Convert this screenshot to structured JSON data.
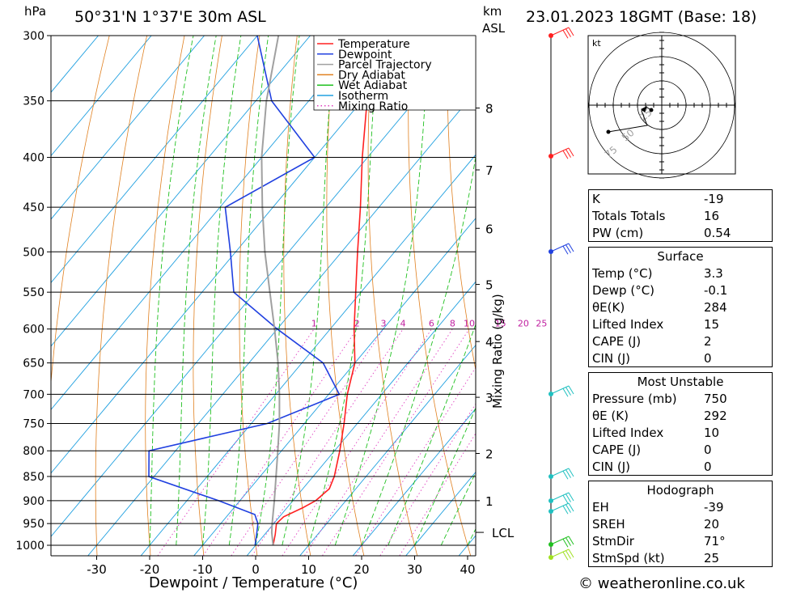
{
  "header": {
    "hpa_label": "hPa",
    "location": "50°31'N  1°37'E  30m  ASL",
    "km_label": "km",
    "asl_label": "ASL",
    "datetime": "23.01.2023  18GMT  (Base: 18)"
  },
  "chart_data": {
    "type": "line",
    "xlabel": "Dewpoint / Temperature (°C)",
    "mixing_ratio_label": "Mixing Ratio (g/kg)",
    "pressure_levels": [
      300,
      350,
      400,
      450,
      500,
      550,
      600,
      650,
      700,
      750,
      800,
      850,
      900,
      950,
      1000
    ],
    "x_ticks": [
      -30,
      -20,
      -10,
      0,
      10,
      20,
      30,
      40
    ],
    "xlim": [
      -39,
      41
    ],
    "ylim": [
      1040,
      300
    ],
    "km_ticks": [
      {
        "km": "1",
        "p": 900
      },
      {
        "km": "2",
        "p": 805
      },
      {
        "km": "3",
        "p": 705
      },
      {
        "km": "4",
        "p": 618
      },
      {
        "km": "5",
        "p": 540
      },
      {
        "km": "6",
        "p": 473
      },
      {
        "km": "7",
        "p": 412
      },
      {
        "km": "8",
        "p": 356
      }
    ],
    "lcl": {
      "label": "LCL",
      "p": 970
    },
    "mixing_ratio_values": [
      "1",
      "2",
      "3",
      "4",
      "6",
      "8",
      "10",
      "15",
      "20",
      "25"
    ],
    "legend": [
      {
        "name": "Temperature",
        "color": "#ff2020"
      },
      {
        "name": "Dewpoint",
        "color": "#2040e0"
      },
      {
        "name": "Parcel Trajectory",
        "color": "#a0a0a0"
      },
      {
        "name": "Dry Adiabat",
        "color": "#e08020"
      },
      {
        "name": "Wet Adiabat",
        "color": "#20c020"
      },
      {
        "name": "Isotherm",
        "color": "#20a0e0"
      },
      {
        "name": "Mixing Ratio",
        "color": "#e040c0"
      }
    ],
    "series": [
      {
        "name": "Temperature",
        "color": "#ff2020",
        "points": [
          [
            1000,
            3.3
          ],
          [
            975,
            2
          ],
          [
            950,
            0.5
          ],
          [
            935,
            0.8
          ],
          [
            915,
            3.0
          ],
          [
            900,
            4.3
          ],
          [
            875,
            5.0
          ],
          [
            850,
            4.0
          ],
          [
            800,
            1.0
          ],
          [
            750,
            -2.5
          ],
          [
            700,
            -6.5
          ],
          [
            650,
            -10.0
          ],
          [
            600,
            -15.5
          ],
          [
            550,
            -21.0
          ],
          [
            500,
            -27.0
          ],
          [
            450,
            -33.5
          ],
          [
            400,
            -41.0
          ],
          [
            350,
            -49.0
          ],
          [
            300,
            -58.0
          ]
        ]
      },
      {
        "name": "Dewpoint",
        "color": "#2040e0",
        "points": [
          [
            1000,
            -0.1
          ],
          [
            975,
            -1.5
          ],
          [
            950,
            -3.0
          ],
          [
            930,
            -5.0
          ],
          [
            900,
            -14.0
          ],
          [
            850,
            -31.0
          ],
          [
            800,
            -35.0
          ],
          [
            750,
            -17.0
          ],
          [
            700,
            -8.0
          ],
          [
            650,
            -16.0
          ],
          [
            600,
            -30.0
          ],
          [
            550,
            -44.0
          ],
          [
            500,
            -51.0
          ],
          [
            450,
            -59.0
          ],
          [
            400,
            -50.0
          ],
          [
            350,
            -67.0
          ],
          [
            300,
            -80.0
          ]
        ]
      },
      {
        "name": "Parcel Trajectory",
        "color": "#a0a0a0",
        "points": [
          [
            1000,
            3.3
          ],
          [
            970,
            1.0
          ],
          [
            950,
            -0.3
          ],
          [
            900,
            -3.5
          ],
          [
            850,
            -7.0
          ],
          [
            800,
            -10.7
          ],
          [
            750,
            -14.7
          ],
          [
            700,
            -19.3
          ],
          [
            650,
            -24.5
          ],
          [
            600,
            -30.5
          ],
          [
            550,
            -37.2
          ],
          [
            500,
            -44.5
          ],
          [
            450,
            -52.0
          ],
          [
            400,
            -60.0
          ],
          [
            350,
            -68.0
          ],
          [
            300,
            -76.0
          ]
        ]
      }
    ]
  },
  "hodograph": {
    "unit": "kt",
    "ring_labels": [
      "25",
      "50",
      "75"
    ]
  },
  "indices": {
    "general": [
      {
        "label": "K",
        "value": "-19"
      },
      {
        "label": "Totals Totals",
        "value": "16"
      },
      {
        "label": "PW (cm)",
        "value": "0.54"
      }
    ],
    "surface_title": "Surface",
    "surface": [
      {
        "label": "Temp (°C)",
        "value": "3.3"
      },
      {
        "label": "Dewp (°C)",
        "value": "-0.1"
      },
      {
        "label": "θE(K)",
        "value": "284"
      },
      {
        "label": "Lifted Index",
        "value": "15"
      },
      {
        "label": "CAPE (J)",
        "value": "2"
      },
      {
        "label": "CIN (J)",
        "value": "0"
      }
    ],
    "mu_title": "Most Unstable",
    "most_unstable": [
      {
        "label": "Pressure (mb)",
        "value": "750"
      },
      {
        "label": "θE (K)",
        "value": "292"
      },
      {
        "label": "Lifted Index",
        "value": "10"
      },
      {
        "label": "CAPE (J)",
        "value": "0"
      },
      {
        "label": "CIN (J)",
        "value": "0"
      }
    ],
    "hodo_title": "Hodograph",
    "hodograph": [
      {
        "label": "EH",
        "value": "-39"
      },
      {
        "label": "SREH",
        "value": "20"
      },
      {
        "label": "StmDir",
        "value": "71°"
      },
      {
        "label": "StmSpd (kt)",
        "value": "25"
      }
    ]
  },
  "footer": {
    "copyright": "© weatheronline.co.uk"
  }
}
